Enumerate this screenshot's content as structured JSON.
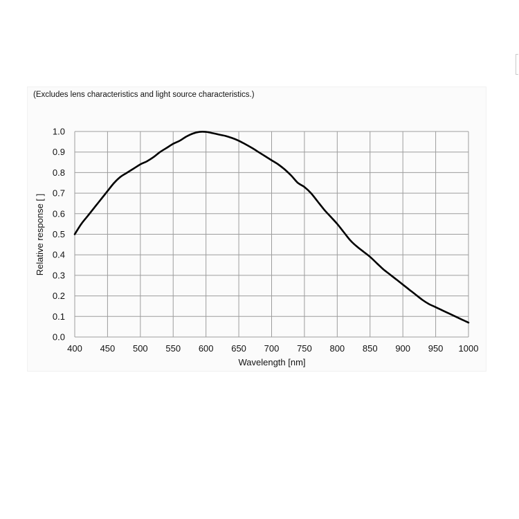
{
  "chart_data": {
    "type": "line",
    "title": "",
    "note": "(Excludes lens characteristics and light source characteristics.)",
    "xlabel": "Wavelength [nm]",
    "ylabel": "Relative response [ ]",
    "xlim": [
      400,
      1000
    ],
    "ylim": [
      0.0,
      1.0
    ],
    "grid": true,
    "x_ticks": [
      "400",
      "450",
      "500",
      "550",
      "600",
      "650",
      "700",
      "750",
      "800",
      "850",
      "900",
      "950",
      "1000"
    ],
    "y_ticks": [
      "0.0",
      "0.1",
      "0.2",
      "0.3",
      "0.4",
      "0.5",
      "0.6",
      "0.7",
      "0.8",
      "0.9",
      "1.0"
    ],
    "x_tick_values": [
      400,
      450,
      500,
      550,
      600,
      650,
      700,
      750,
      800,
      850,
      900,
      950,
      1000
    ],
    "y_tick_values": [
      0.0,
      0.1,
      0.2,
      0.3,
      0.4,
      0.5,
      0.6,
      0.7,
      0.8,
      0.9,
      1.0
    ],
    "series": [
      {
        "color": "#000000",
        "x": [
          400,
          410,
          420,
          430,
          440,
          450,
          460,
          470,
          480,
          490,
          500,
          510,
          520,
          530,
          540,
          550,
          560,
          570,
          580,
          590,
          600,
          610,
          620,
          630,
          640,
          650,
          660,
          670,
          680,
          690,
          700,
          710,
          720,
          730,
          740,
          750,
          760,
          770,
          780,
          790,
          800,
          810,
          820,
          830,
          840,
          850,
          860,
          870,
          880,
          890,
          900,
          910,
          920,
          930,
          940,
          950,
          960,
          970,
          980,
          990,
          1000
        ],
        "y": [
          0.5,
          0.55,
          0.59,
          0.63,
          0.67,
          0.71,
          0.75,
          0.78,
          0.8,
          0.82,
          0.84,
          0.855,
          0.875,
          0.9,
          0.92,
          0.94,
          0.955,
          0.975,
          0.99,
          0.998,
          0.998,
          0.992,
          0.985,
          0.978,
          0.968,
          0.955,
          0.938,
          0.92,
          0.9,
          0.88,
          0.86,
          0.84,
          0.815,
          0.785,
          0.75,
          0.73,
          0.7,
          0.66,
          0.62,
          0.585,
          0.55,
          0.51,
          0.47,
          0.44,
          0.415,
          0.39,
          0.36,
          0.33,
          0.305,
          0.28,
          0.255,
          0.23,
          0.205,
          0.18,
          0.16,
          0.145,
          0.13,
          0.115,
          0.1,
          0.085,
          0.07
        ]
      }
    ]
  }
}
